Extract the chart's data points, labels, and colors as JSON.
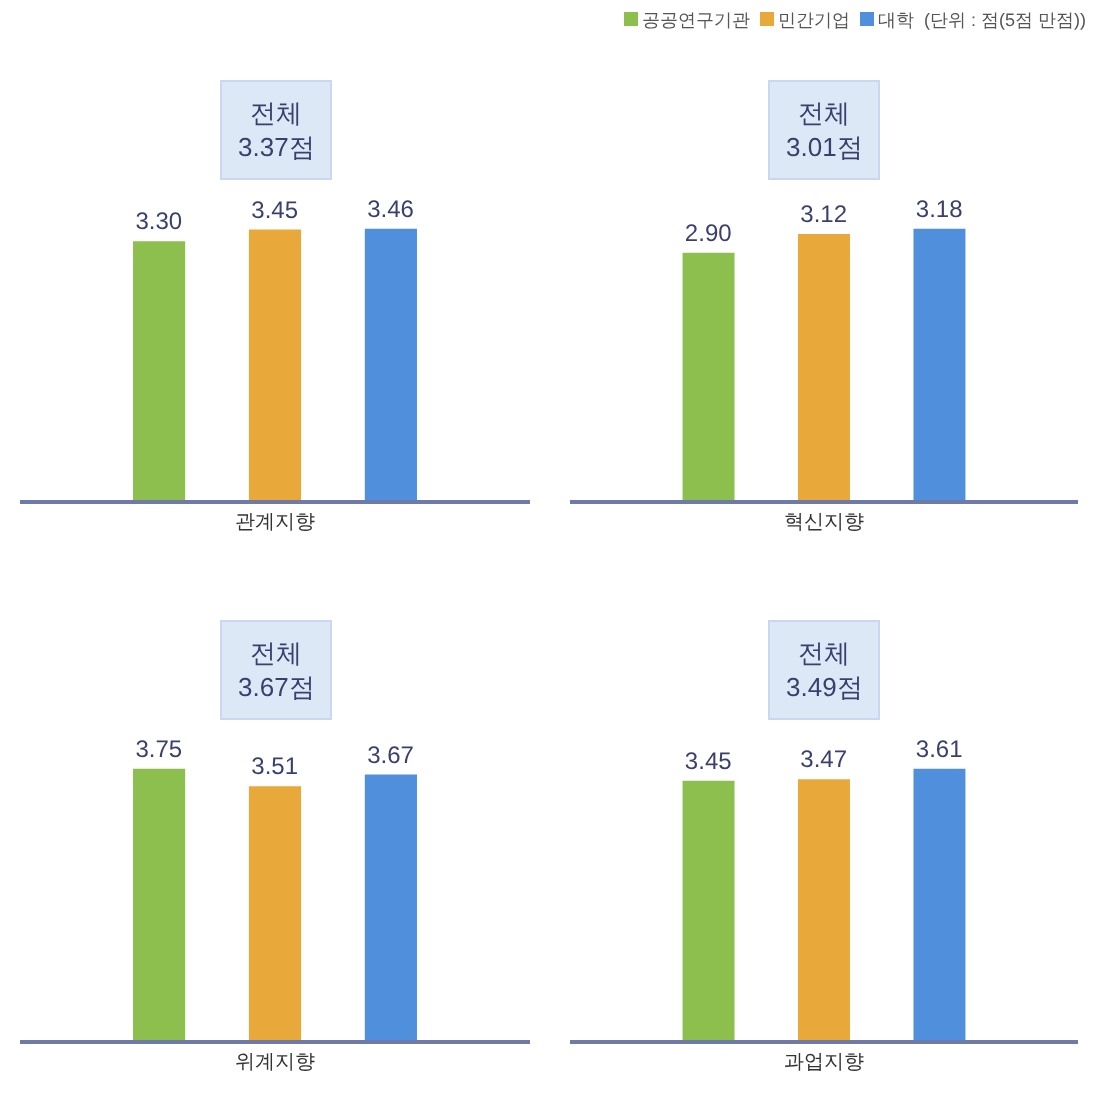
{
  "chart_data": [
    {
      "type": "bar",
      "categories": [
        null,
        null,
        null
      ],
      "xlabel": "관계지향",
      "data_labels": true,
      "annotations": [
        "전체\n3.37점"
      ],
      "values": [
        3.3,
        3.45,
        3.46
      ],
      "value_labels": [
        "3.30",
        "3.45",
        "3.46"
      ],
      "colors": [
        "#8dbf4e",
        "#e9a93a",
        "#4f8fdc"
      ]
    },
    {
      "type": "bar",
      "categories": [
        null,
        null,
        null
      ],
      "xlabel": "혁신지향",
      "data_labels": true,
      "annotations": [
        "전체\n3.01점",
        "공공연구기관",
        "민간기업",
        "대학",
        "(단위 : 점(5점 만점))"
      ],
      "values": [
        2.9,
        3.12,
        3.18
      ],
      "value_labels": [
        "2.90",
        "3.12",
        "3.18"
      ],
      "colors": [
        "#8dbf4e",
        "#e9a93a",
        "#4f8fdc"
      ]
    },
    {
      "type": "bar",
      "categories": [
        null,
        null,
        null
      ],
      "xlabel": "위계지향",
      "data_labels": true,
      "annotations": [
        "전체\n3.67점"
      ],
      "values": [
        3.75,
        3.51,
        3.67
      ],
      "value_labels": [
        "3.75",
        "3.51",
        "3.67"
      ],
      "colors": [
        "#8dbf4e",
        "#e9a93a",
        "#4f8fdc"
      ]
    },
    {
      "type": "bar",
      "categories": [
        null,
        null,
        null
      ],
      "xlabel": "과업지향",
      "data_labels": true,
      "annotations": [
        "전체\n3.49점"
      ],
      "values": [
        3.45,
        3.47,
        3.61
      ],
      "value_labels": [
        "3.45",
        "3.47",
        "3.61"
      ],
      "colors": [
        "#8dbf4e",
        "#e9a93a",
        "#4f8fdc"
      ]
    }
  ]
}
